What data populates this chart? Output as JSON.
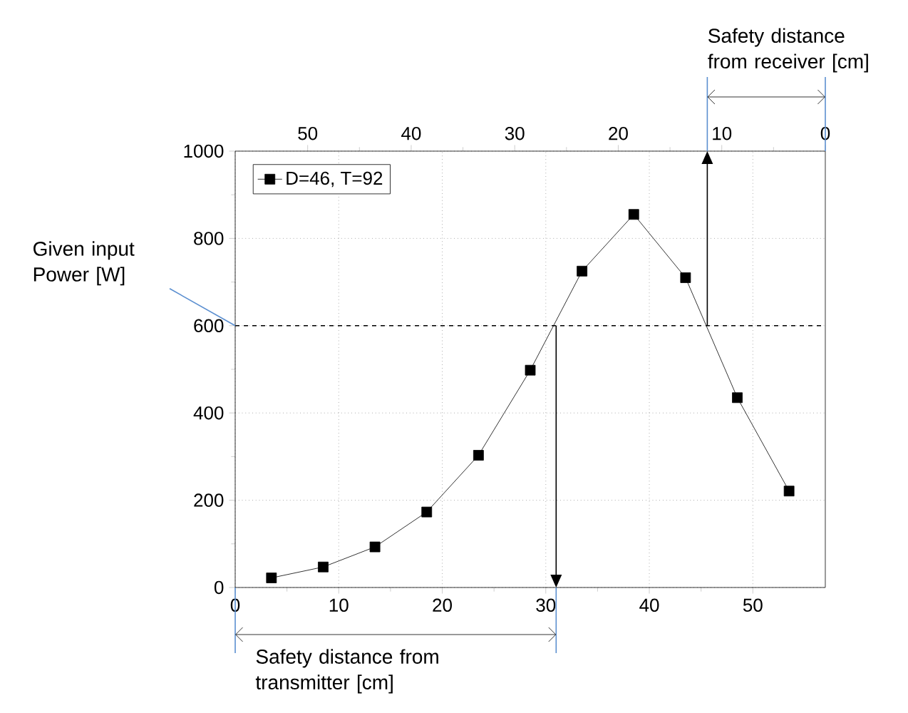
{
  "chart_data": {
    "type": "line",
    "x": [
      3.5,
      8.5,
      13.5,
      18.5,
      23.5,
      28.5,
      33.5,
      38.5,
      43.5,
      48.5,
      53.5
    ],
    "series": [
      {
        "name": "D=46, T=92",
        "color": "#000000",
        "values": [
          22,
          47,
          93,
          173,
          303,
          498,
          725,
          855,
          710,
          435,
          221
        ]
      }
    ],
    "xlim": [
      0,
      57
    ],
    "xticks": [
      0,
      10,
      20,
      30,
      40,
      50
    ],
    "x2lim": [
      57,
      0
    ],
    "x2ticks": [
      0,
      10,
      20,
      30,
      40,
      50
    ],
    "ylim": [
      0,
      1000
    ],
    "yticks": [
      0,
      200,
      400,
      600,
      800,
      1000
    ],
    "grid": true,
    "legend": "top left",
    "marker": "square",
    "line_style": "solid",
    "ref_lines": [
      {
        "axis": "y",
        "value": 600,
        "line_style": "dashed",
        "color": "#000000"
      },
      {
        "axis": "x",
        "value": 31,
        "color": "#000000"
      },
      {
        "axis": "x",
        "value": 45.6,
        "color": "#000000"
      }
    ],
    "annotations": [
      "Given input Power [W]",
      "Safety distance from transmitter [cm]",
      "Safety distance from receiver [cm]"
    ]
  }
}
